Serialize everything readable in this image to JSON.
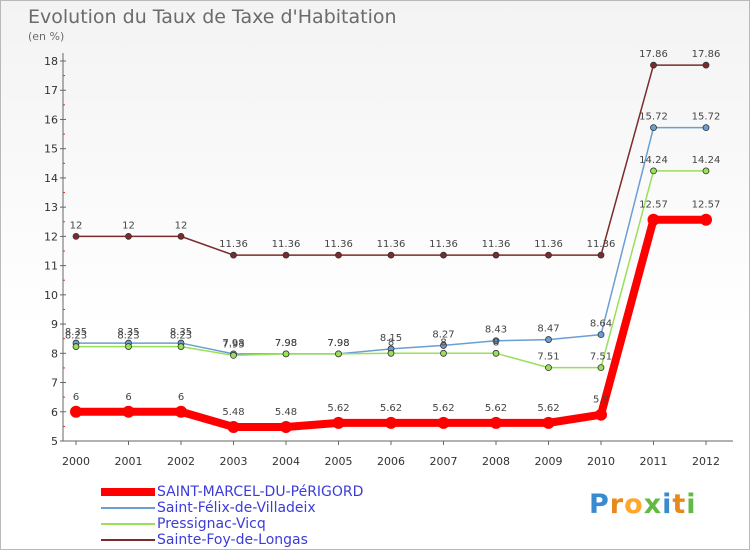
{
  "title": "Evolution du Taux de Taxe d'Habitation",
  "subtitle": "(en %)",
  "logo": {
    "text": "Proxiti",
    "letter_colors": [
      "#3a8ad0",
      "#e8891d",
      "#ffa62b",
      "#62b946",
      "#3a8ad0",
      "#e8891d",
      "#62b946"
    ]
  },
  "chart_data": {
    "type": "line",
    "x": [
      "2000",
      "2001",
      "2002",
      "2003",
      "2004",
      "2005",
      "2006",
      "2007",
      "2008",
      "2009",
      "2010",
      "2011",
      "2012"
    ],
    "ylim": [
      5,
      18
    ],
    "yticks": [
      "5",
      "6",
      "7",
      "8",
      "9",
      "10",
      "11",
      "12",
      "13",
      "14",
      "15",
      "16",
      "17",
      "18"
    ],
    "legend_position": "bottom-left",
    "grid": false,
    "series": [
      {
        "name": "SAINT-MARCEL-DU-PéRIGORD",
        "color": "#ff0000",
        "values": [
          6,
          6,
          6,
          5.48,
          5.48,
          5.62,
          5.62,
          5.62,
          5.62,
          5.62,
          5.9,
          12.57,
          12.57
        ],
        "labels": [
          "6",
          "6",
          "6",
          "5.48",
          "5.48",
          "5.62",
          "5.62",
          "5.62",
          "5.62",
          "5.62",
          "5.9",
          "12.57",
          "12.57"
        ]
      },
      {
        "name": "Saint-Félix-de-Villadeix",
        "color": "#6a9fd4",
        "values": [
          8.35,
          8.35,
          8.35,
          7.98,
          7.98,
          7.98,
          8.15,
          8.27,
          8.43,
          8.47,
          8.64,
          15.72,
          15.72
        ],
        "labels": [
          "8.35",
          "8.35",
          "8.35",
          "7.98",
          "7.98",
          "7.98",
          "8.15",
          "8.27",
          "8.43",
          "8.47",
          "8.64",
          "15.72",
          "15.72"
        ]
      },
      {
        "name": "Pressignac-Vicq",
        "color": "#99e05a",
        "values": [
          8.23,
          8.23,
          8.23,
          7.93,
          7.98,
          7.98,
          8,
          8,
          8,
          7.51,
          7.51,
          14.24,
          14.24
        ],
        "labels": [
          "8.23",
          "8.23",
          "8.23",
          "7.93",
          "7.98",
          "7.98",
          "8",
          "8",
          "8",
          "7.51",
          "7.51",
          "14.24",
          "14.24"
        ]
      },
      {
        "name": "Sainte-Foy-de-Longas",
        "color": "#7b2b2b",
        "values": [
          12,
          12,
          12,
          11.36,
          11.36,
          11.36,
          11.36,
          11.36,
          11.36,
          11.36,
          11.36,
          17.86,
          17.86
        ],
        "labels": [
          "12",
          "12",
          "12",
          "11.36",
          "11.36",
          "11.36",
          "11.36",
          "11.36",
          "11.36",
          "11.36",
          "11.36",
          "17.86",
          "17.86"
        ]
      }
    ]
  }
}
